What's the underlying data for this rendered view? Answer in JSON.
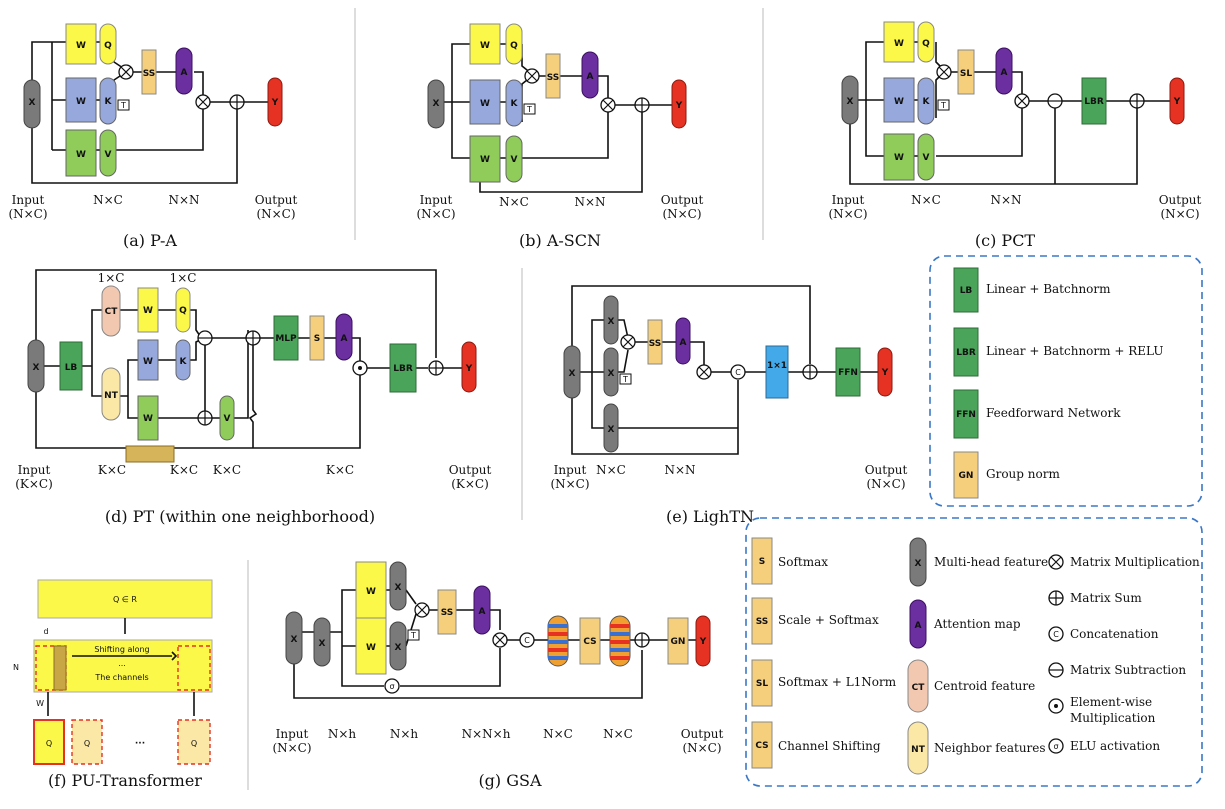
{
  "captions": {
    "a": "(a) P-A",
    "b": "(b) A-SCN",
    "c": "(c) PCT",
    "d": "(d) PT (within one neighborhood)",
    "e": "(e) LighTN",
    "f": "(f) PU-Transformer",
    "g": "(g) GSA"
  },
  "io": {
    "input": "Input",
    "output": "Output",
    "nxc": "(N×C)",
    "kxc": "(K×C)",
    "NxC": "N×C",
    "NxN": "N×N",
    "KxC": "K×C",
    "onexC": "1×C",
    "nhch": "N×h",
    "nnh": "N×N×h"
  },
  "nodes": {
    "X": "X",
    "Y": "Y",
    "Q": "Q",
    "K": "K",
    "V": "V",
    "A": "A",
    "W": "W",
    "SS": "SS",
    "SL": "SL",
    "S": "S",
    "LB": "LB",
    "LBR": "LBR",
    "MLP": "MLP",
    "CT": "CT",
    "NT": "NT",
    "FFN": "FFN",
    "CS": "CS",
    "GN": "GN",
    "T": "T",
    "C": "C",
    "sigma": "σ",
    "one": "1×1"
  },
  "pu": {
    "q_formula": "Q ∈ R",
    "d": "d",
    "N": "N",
    "shift1": "Shifting along",
    "shift2": "...",
    "shift3": "The channels",
    "w": "W",
    "q1": "Q",
    "dots": "···"
  },
  "legend1": [
    {
      "code": "LB",
      "text": "Linear + Batchnorm"
    },
    {
      "code": "LBR",
      "text": "Linear + Batchnorm + RELU"
    },
    {
      "code": "FFN",
      "text": "Feedforward Network"
    },
    {
      "code": "GN",
      "text": "Group norm"
    }
  ],
  "legend2_col1": [
    {
      "code": "S",
      "text": "Softmax"
    },
    {
      "code": "SS",
      "text": "Scale + Softmax"
    },
    {
      "code": "SL",
      "text": "Softmax + L1Norm"
    },
    {
      "code": "CS",
      "text": "Channel Shifting"
    }
  ],
  "legend2_col2": [
    {
      "code": "X",
      "text": "Multi-head feature"
    },
    {
      "code": "A",
      "text": "Attention map"
    },
    {
      "code": "CT",
      "text": "Centroid feature"
    },
    {
      "code": "NT",
      "text": "Neighbor features"
    }
  ],
  "legend2_col3": [
    {
      "sym": "⊗",
      "text": "Matrix Multiplication"
    },
    {
      "sym": "⊕",
      "text": "Matrix Sum"
    },
    {
      "sym": "C",
      "text": "Concatenation"
    },
    {
      "sym": "⊖",
      "text": "Matrix Subtraction"
    },
    {
      "sym": "⊙",
      "text": "Element-wise",
      "text2": "Multiplication"
    },
    {
      "sym": "σ",
      "text": "ELU activation"
    }
  ],
  "colors": {
    "legend_border": "#3a78c8",
    "separator": "#aaaaaa"
  }
}
